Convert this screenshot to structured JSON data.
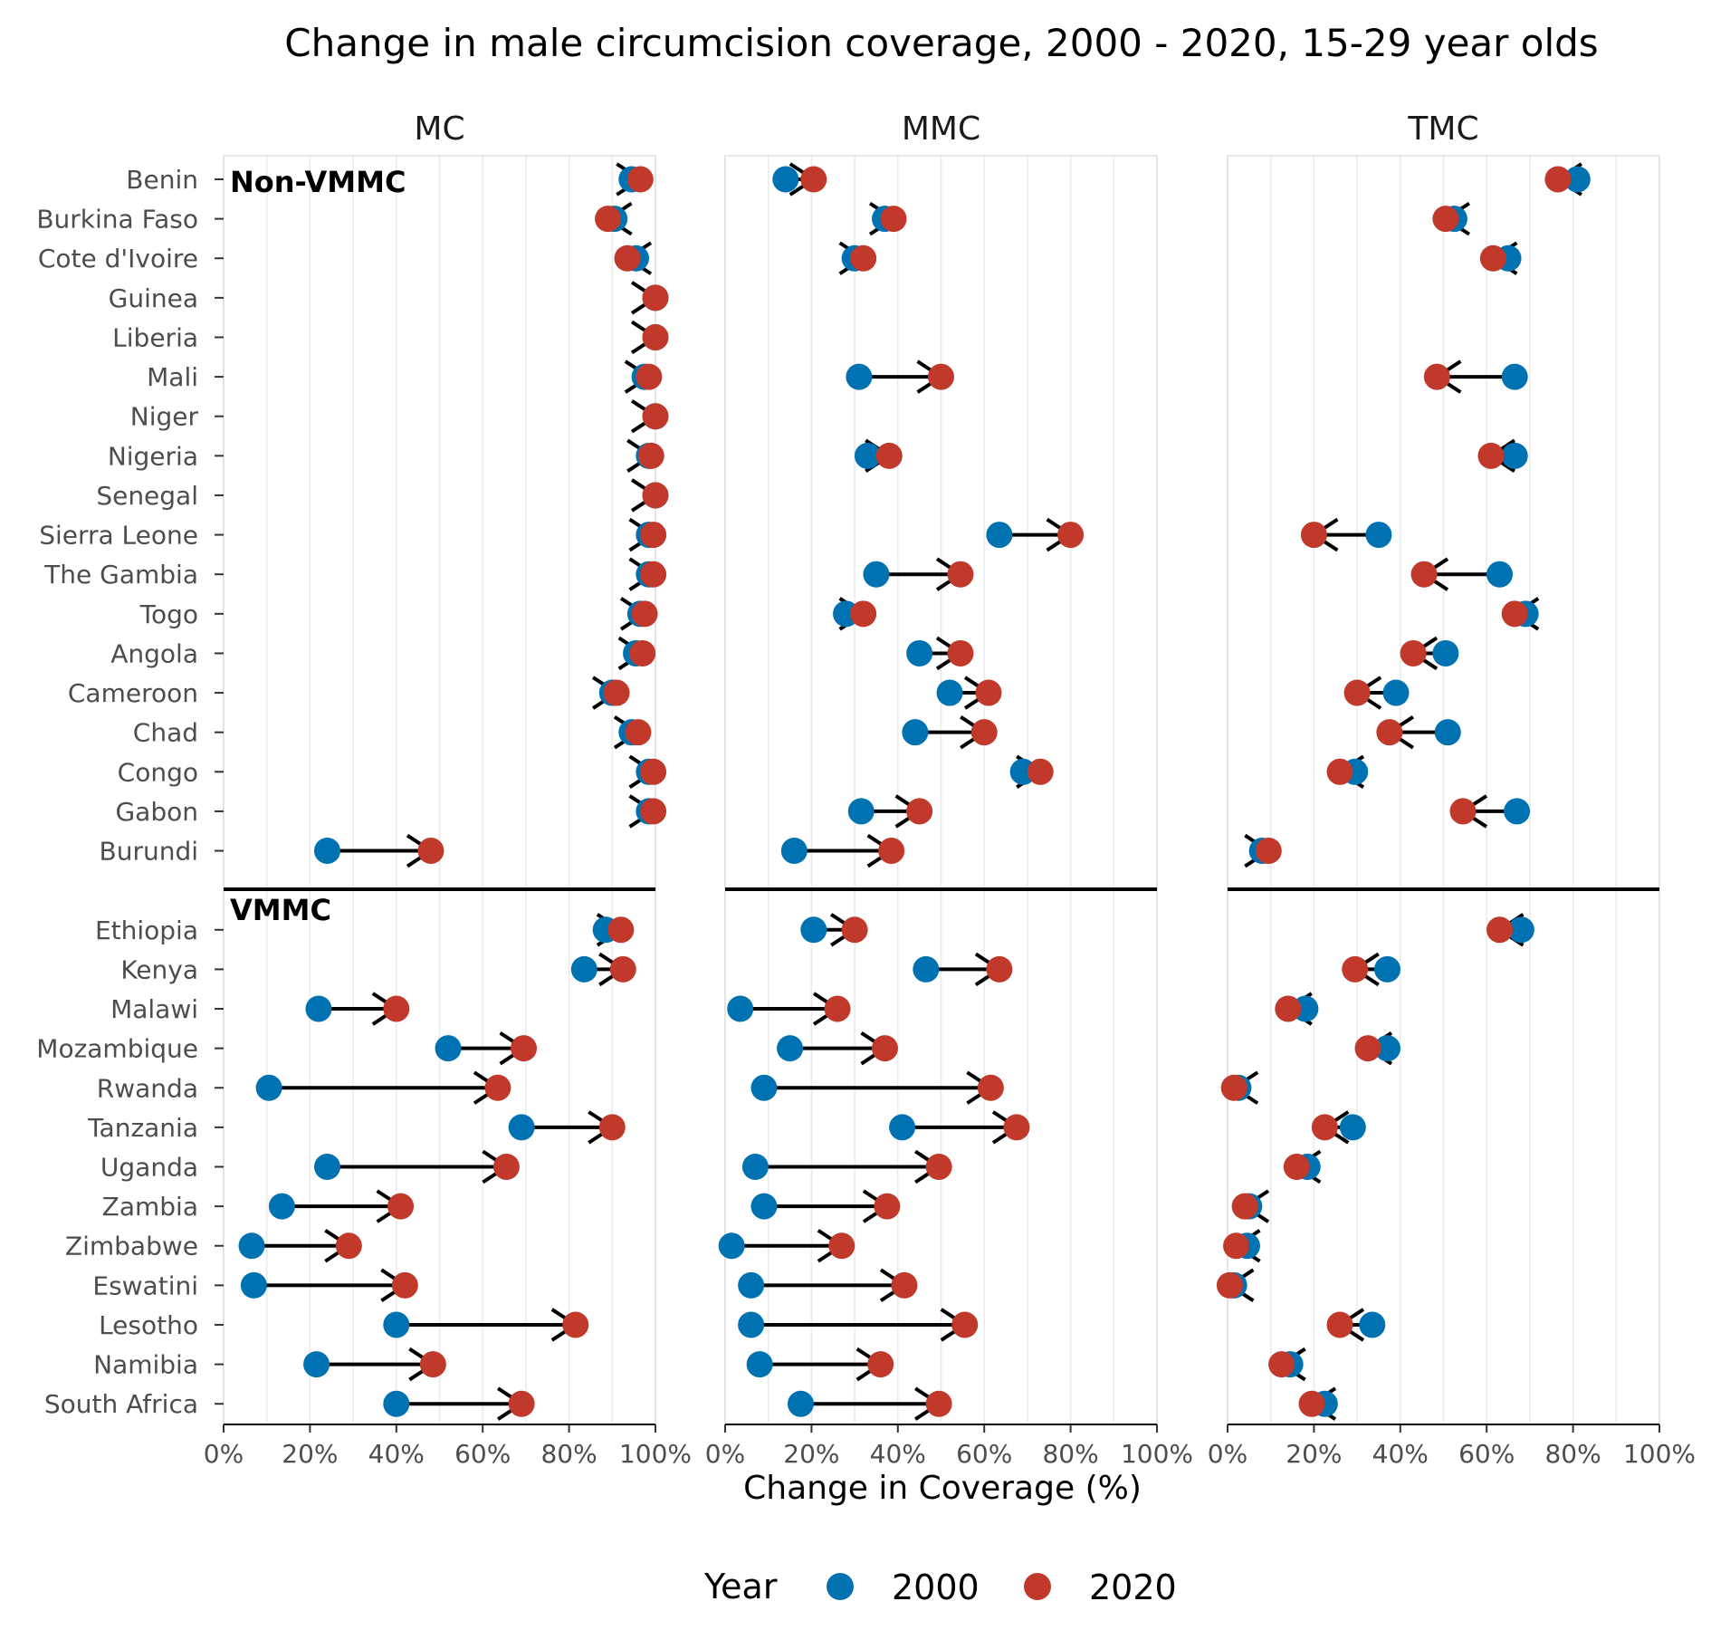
{
  "chart_data": {
    "type": "dumbbell",
    "title": "Change in male circumcision coverage, 2000 - 2020, 15-29 year olds",
    "xlabel": "Change in Coverage (%)",
    "xlim": [
      0,
      1
    ],
    "xticks": [
      "0%",
      "20%",
      "40%",
      "60%",
      "80%",
      "100%"
    ],
    "panels": [
      "MC",
      "MMC",
      "TMC"
    ],
    "groups": [
      {
        "label": "Non-VMMC",
        "countries": [
          "Benin",
          "Burkina Faso",
          "Cote d'Ivoire",
          "Guinea",
          "Liberia",
          "Mali",
          "Niger",
          "Nigeria",
          "Senegal",
          "Sierra Leone",
          "The Gambia",
          "Togo",
          "Angola",
          "Cameroon",
          "Chad",
          "Congo",
          "Gabon",
          "Burundi"
        ]
      },
      {
        "label": "VMMC",
        "countries": [
          "Ethiopia",
          "Kenya",
          "Malawi",
          "Mozambique",
          "Rwanda",
          "Tanzania",
          "Uganda",
          "Zambia",
          "Zimbabwe",
          "Eswatini",
          "Lesotho",
          "Namibia",
          "South Africa"
        ]
      }
    ],
    "legend": {
      "title": "Year",
      "position": "bottom",
      "items": [
        {
          "label": "2000",
          "color": "#0072B2"
        },
        {
          "label": "2020",
          "color": "#C0392B"
        }
      ]
    },
    "series": {
      "MC": {
        "2000": [
          0.945,
          0.905,
          0.955,
          1.0,
          1.0,
          0.975,
          1.0,
          0.985,
          1.0,
          0.985,
          0.985,
          0.965,
          0.955,
          0.9,
          0.945,
          0.985,
          0.985,
          0.24,
          0.885,
          0.835,
          0.22,
          0.52,
          0.105,
          0.69,
          0.24,
          0.135,
          0.065,
          0.07,
          0.4,
          0.215,
          0.4
        ],
        "2020": [
          0.965,
          0.89,
          0.935,
          1.0,
          1.0,
          0.985,
          1.0,
          0.99,
          1.0,
          0.995,
          0.995,
          0.975,
          0.97,
          0.91,
          0.96,
          0.995,
          0.995,
          0.48,
          0.92,
          0.925,
          0.4,
          0.695,
          0.635,
          0.9,
          0.655,
          0.41,
          0.29,
          0.42,
          0.815,
          0.485,
          0.69
        ]
      },
      "MMC": {
        "2000": [
          0.14,
          0.37,
          0.3,
          null,
          null,
          0.31,
          null,
          0.33,
          null,
          0.635,
          0.35,
          0.28,
          0.45,
          0.52,
          0.44,
          0.69,
          0.315,
          0.16,
          0.205,
          0.465,
          0.035,
          0.15,
          0.09,
          0.41,
          0.07,
          0.09,
          0.015,
          0.06,
          0.06,
          0.08,
          0.175
        ],
        "2020": [
          0.205,
          0.39,
          0.32,
          null,
          null,
          0.5,
          null,
          0.38,
          null,
          0.8,
          0.545,
          0.32,
          0.545,
          0.61,
          0.6,
          0.73,
          0.45,
          0.385,
          0.3,
          0.635,
          0.26,
          0.37,
          0.615,
          0.675,
          0.495,
          0.375,
          0.27,
          0.415,
          0.555,
          0.36,
          0.495
        ]
      },
      "TMC": {
        "2000": [
          0.81,
          0.525,
          0.65,
          null,
          null,
          0.665,
          null,
          0.665,
          null,
          0.35,
          0.63,
          0.69,
          0.505,
          0.39,
          0.51,
          0.295,
          0.67,
          0.08,
          0.68,
          0.37,
          0.18,
          0.37,
          0.025,
          0.29,
          0.185,
          0.05,
          0.045,
          0.015,
          0.335,
          0.145,
          0.225
        ],
        "2020": [
          0.765,
          0.505,
          0.615,
          null,
          null,
          0.485,
          null,
          0.61,
          null,
          0.2,
          0.455,
          0.665,
          0.43,
          0.3,
          0.375,
          0.26,
          0.545,
          0.095,
          0.63,
          0.295,
          0.14,
          0.325,
          0.015,
          0.225,
          0.16,
          0.04,
          0.02,
          0.005,
          0.26,
          0.125,
          0.195
        ]
      }
    }
  }
}
